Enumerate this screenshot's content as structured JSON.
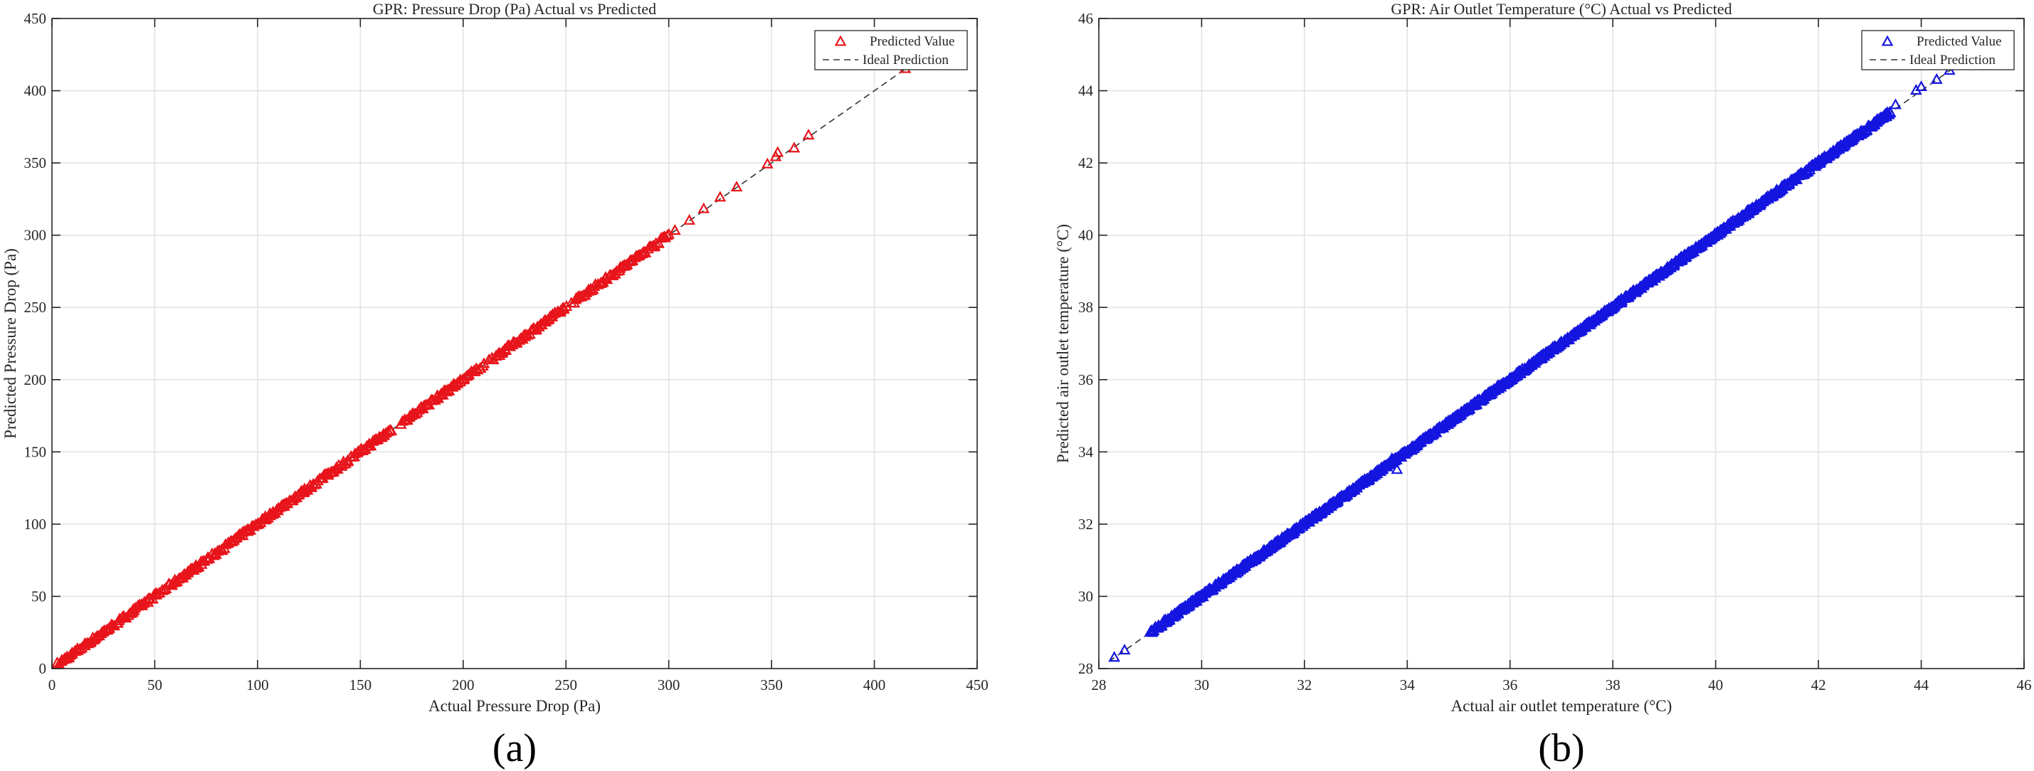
{
  "chart_data": [
    {
      "type": "scatter",
      "title": "GPR: Pressure Drop (Pa) Actual vs Predicted",
      "xlabel": "Actual Pressure Drop (Pa)",
      "ylabel": "Predicted Pressure Drop (Pa)",
      "caption": "(a)",
      "xlim": [
        0,
        450
      ],
      "ylim": [
        0,
        450
      ],
      "xticks": [
        "0",
        "50",
        "100",
        "150",
        "200",
        "250",
        "300",
        "350",
        "400",
        "450"
      ],
      "yticks": [
        "0",
        "50",
        "100",
        "150",
        "200",
        "250",
        "300",
        "350",
        "400",
        "450"
      ],
      "grid": true,
      "legend_position": "top-right",
      "color": "#e8141b",
      "series": [
        {
          "name": "Predicted Value",
          "marker": "triangle",
          "segments": [
            [
              3,
              165
            ],
            [
              170,
              210
            ],
            [
              213,
              250
            ],
            [
              253,
              300
            ]
          ],
          "scattered": [
            [
              303,
              303
            ],
            [
              310,
              310
            ],
            [
              317,
              318
            ],
            [
              325,
              326
            ],
            [
              333,
              333
            ],
            [
              348,
              349
            ],
            [
              352,
              354
            ],
            [
              353,
              357
            ],
            [
              361,
              360
            ],
            [
              368,
              369
            ],
            [
              415,
              415
            ]
          ]
        },
        {
          "name": "Ideal Prediction",
          "type": "line",
          "dash": "dashed",
          "x": [
            0,
            420
          ],
          "y": [
            0,
            420
          ]
        }
      ]
    },
    {
      "type": "scatter",
      "title": "GPR: Air Outlet Temperature (°C) Actual vs Predicted",
      "xlabel": "Actual air outlet temperature (°C)",
      "ylabel": "Predicted air outlet temperature (°C)",
      "caption": "(b)",
      "xlim": [
        28,
        46
      ],
      "ylim": [
        28,
        46
      ],
      "xticks": [
        "28",
        "30",
        "32",
        "34",
        "36",
        "38",
        "40",
        "42",
        "44",
        "46"
      ],
      "yticks": [
        "28",
        "30",
        "32",
        "34",
        "36",
        "38",
        "40",
        "42",
        "44",
        "46"
      ],
      "grid": true,
      "legend_position": "top-right",
      "color": "#1515e0",
      "series": [
        {
          "name": "Predicted Value",
          "marker": "triangle",
          "segments": [
            [
              29.0,
              43.4
            ]
          ],
          "scattered": [
            [
              28.3,
              28.3
            ],
            [
              28.5,
              28.5
            ],
            [
              29.0,
              29.0
            ],
            [
              33.8,
              33.5
            ],
            [
              33.7,
              33.8
            ],
            [
              43.5,
              43.6
            ],
            [
              43.9,
              44.0
            ],
            [
              44.0,
              44.1
            ],
            [
              44.3,
              44.3
            ],
            [
              44.55,
              44.55
            ]
          ]
        },
        {
          "name": "Ideal Prediction",
          "type": "line",
          "dash": "dashed",
          "x": [
            28.2,
            44.7
          ],
          "y": [
            28.2,
            44.7
          ]
        }
      ]
    }
  ]
}
